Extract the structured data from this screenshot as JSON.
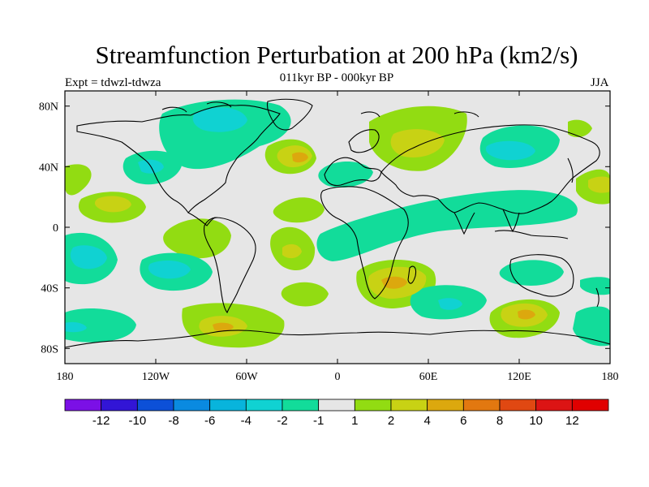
{
  "title": "Streamfunction Perturbation at 200 hPa (km2/s)",
  "subtitle": "011kyr BP - 000kyr BP",
  "expt_label": "Expt = tdwzl-tdwza",
  "season": "JJA",
  "axes": {
    "lat_ticks": [
      "80N",
      "40N",
      "0",
      "40S",
      "80S"
    ],
    "lon_ticks": [
      "180",
      "120W",
      "60W",
      "0",
      "60E",
      "120E",
      "180"
    ]
  },
  "colorbar": {
    "labels": [
      "-12",
      "-10",
      "-8",
      "-6",
      "-4",
      "-2",
      "-1",
      "1",
      "2",
      "4",
      "6",
      "8",
      "10",
      "12"
    ],
    "colors": [
      "#7b10e6",
      "#3215d6",
      "#0c50d8",
      "#0a8ae0",
      "#08b4dc",
      "#10d2d2",
      "#12dc9a",
      "#e6e6e6",
      "#92dc12",
      "#c8d214",
      "#dca80e",
      "#e27810",
      "#e04812",
      "#dc1414",
      "#e00000"
    ]
  },
  "colors": {
    "background": "#e6e6e6",
    "coast": "#000000"
  }
}
